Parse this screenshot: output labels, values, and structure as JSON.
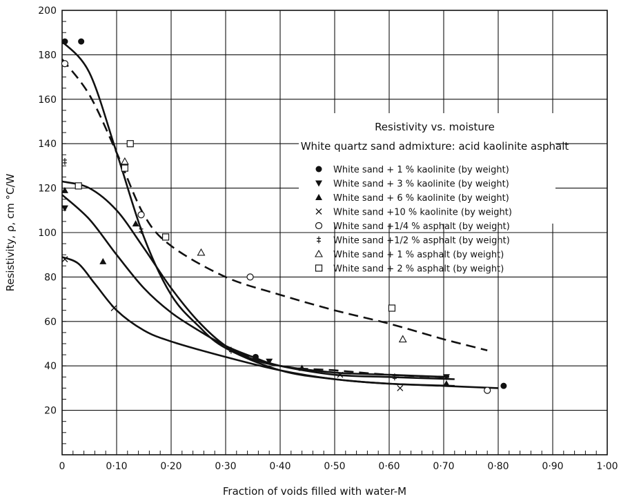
{
  "chart_data": {
    "type": "scatter",
    "title": "Resistivity vs. moisture",
    "subtitle": "White quartz sand admixture: acid kaolinite asphalt",
    "xlabel": "Fraction of voids filled with water-M",
    "ylabel": "Resistivity, ρ,    cm °C/W",
    "xlim": [
      0,
      1.0
    ],
    "ylim": [
      0,
      200
    ],
    "x_ticks": [
      0,
      0.1,
      0.2,
      0.3,
      0.4,
      0.5,
      0.6,
      0.7,
      0.8,
      0.9,
      1.0
    ],
    "x_tick_labels": [
      "0",
      "0·10",
      "0·20",
      "0·30",
      "0·40",
      "0·50",
      "0·60",
      "0·70",
      "0·80",
      "0·90",
      "1·00"
    ],
    "y_ticks": [
      20,
      40,
      60,
      80,
      100,
      120,
      140,
      160,
      180,
      200
    ],
    "y_tick_labels": [
      "20",
      "40",
      "60",
      "80",
      "100",
      "120",
      "140",
      "160",
      "180",
      "200"
    ],
    "grid": true,
    "legend_position": "right",
    "series": [
      {
        "name": "White sand + 1 % kaolinite (by weight)",
        "marker": "filled-circle",
        "points": [
          [
            0.005,
            186
          ],
          [
            0.035,
            186
          ],
          [
            0.355,
            44
          ],
          [
            0.81,
            31
          ]
        ]
      },
      {
        "name": "White sand + 3 % kaolinite (by weight)",
        "marker": "filled-triangle-down",
        "points": [
          [
            0.005,
            111
          ],
          [
            0.38,
            42
          ],
          [
            0.705,
            35
          ]
        ]
      },
      {
        "name": "White sand + 6 % kaolinite (by weight)",
        "marker": "filled-triangle-up",
        "points": [
          [
            0.005,
            119
          ],
          [
            0.075,
            87
          ],
          [
            0.135,
            104
          ],
          [
            0.44,
            39
          ],
          [
            0.705,
            32
          ]
        ]
      },
      {
        "name": "White sand +10 % kaolinite (by weight)",
        "marker": "cross",
        "points": [
          [
            0.005,
            88
          ],
          [
            0.095,
            66
          ],
          [
            0.51,
            36
          ],
          [
            0.62,
            30
          ]
        ]
      },
      {
        "name": "White sand +1/4 % asphalt (by weight)",
        "marker": "open-circle",
        "points": [
          [
            0.005,
            176
          ],
          [
            0.145,
            108
          ],
          [
            0.345,
            80
          ],
          [
            0.78,
            29
          ]
        ]
      },
      {
        "name": "White sand +1/2 % asphalt (by weight)",
        "marker": "double-dagger",
        "points": [
          [
            0.005,
            132
          ],
          [
            0.145,
            101
          ],
          [
            0.31,
            47
          ],
          [
            0.61,
            35
          ]
        ]
      },
      {
        "name": "White sand + 1 % asphalt (by weight)",
        "marker": "open-triangle-up",
        "points": [
          [
            0.115,
            132
          ],
          [
            0.255,
            91
          ],
          [
            0.625,
            52
          ]
        ]
      },
      {
        "name": "White sand + 2 % asphalt (by weight)",
        "marker": "open-square",
        "points": [
          [
            0.03,
            121
          ],
          [
            0.115,
            129
          ],
          [
            0.125,
            140
          ],
          [
            0.19,
            98
          ],
          [
            0.605,
            66
          ]
        ]
      }
    ],
    "curves": [
      {
        "style": "solid",
        "points": [
          [
            0.0,
            186
          ],
          [
            0.05,
            172
          ],
          [
            0.1,
            136
          ],
          [
            0.15,
            98
          ],
          [
            0.2,
            72
          ],
          [
            0.25,
            58
          ],
          [
            0.3,
            48
          ],
          [
            0.4,
            38
          ],
          [
            0.5,
            34
          ],
          [
            0.6,
            32
          ],
          [
            0.7,
            31
          ],
          [
            0.8,
            30
          ]
        ]
      },
      {
        "style": "dashed",
        "points": [
          [
            0.0,
            178
          ],
          [
            0.05,
            162
          ],
          [
            0.1,
            136
          ],
          [
            0.15,
            108
          ],
          [
            0.2,
            94
          ],
          [
            0.3,
            80
          ],
          [
            0.4,
            72
          ],
          [
            0.5,
            65
          ],
          [
            0.6,
            59
          ],
          [
            0.7,
            52
          ],
          [
            0.78,
            47
          ]
        ]
      },
      {
        "style": "solid",
        "points": [
          [
            0.0,
            123
          ],
          [
            0.05,
            120
          ],
          [
            0.1,
            110
          ],
          [
            0.15,
            93
          ],
          [
            0.2,
            75
          ],
          [
            0.25,
            60
          ],
          [
            0.3,
            49
          ],
          [
            0.35,
            43
          ],
          [
            0.4,
            40
          ],
          [
            0.5,
            37
          ],
          [
            0.6,
            36
          ],
          [
            0.71,
            35
          ]
        ]
      },
      {
        "style": "solid",
        "points": [
          [
            0.0,
            117
          ],
          [
            0.05,
            106
          ],
          [
            0.1,
            90
          ],
          [
            0.15,
            75
          ],
          [
            0.2,
            64
          ],
          [
            0.25,
            56
          ],
          [
            0.3,
            49
          ],
          [
            0.35,
            44
          ],
          [
            0.4,
            40
          ],
          [
            0.5,
            36
          ],
          [
            0.6,
            35
          ],
          [
            0.72,
            34
          ]
        ]
      },
      {
        "style": "solid",
        "points": [
          [
            0.0,
            89
          ],
          [
            0.03,
            86
          ],
          [
            0.06,
            77
          ],
          [
            0.1,
            65
          ],
          [
            0.15,
            56
          ],
          [
            0.2,
            51
          ],
          [
            0.3,
            44
          ],
          [
            0.4,
            38
          ],
          [
            0.5,
            34
          ],
          [
            0.6,
            32
          ],
          [
            0.72,
            31
          ]
        ]
      },
      {
        "style": "dashed",
        "points": [
          [
            0.3,
            48
          ],
          [
            0.4,
            40
          ],
          [
            0.5,
            38
          ],
          [
            0.6,
            36
          ],
          [
            0.7,
            35
          ]
        ]
      }
    ]
  }
}
